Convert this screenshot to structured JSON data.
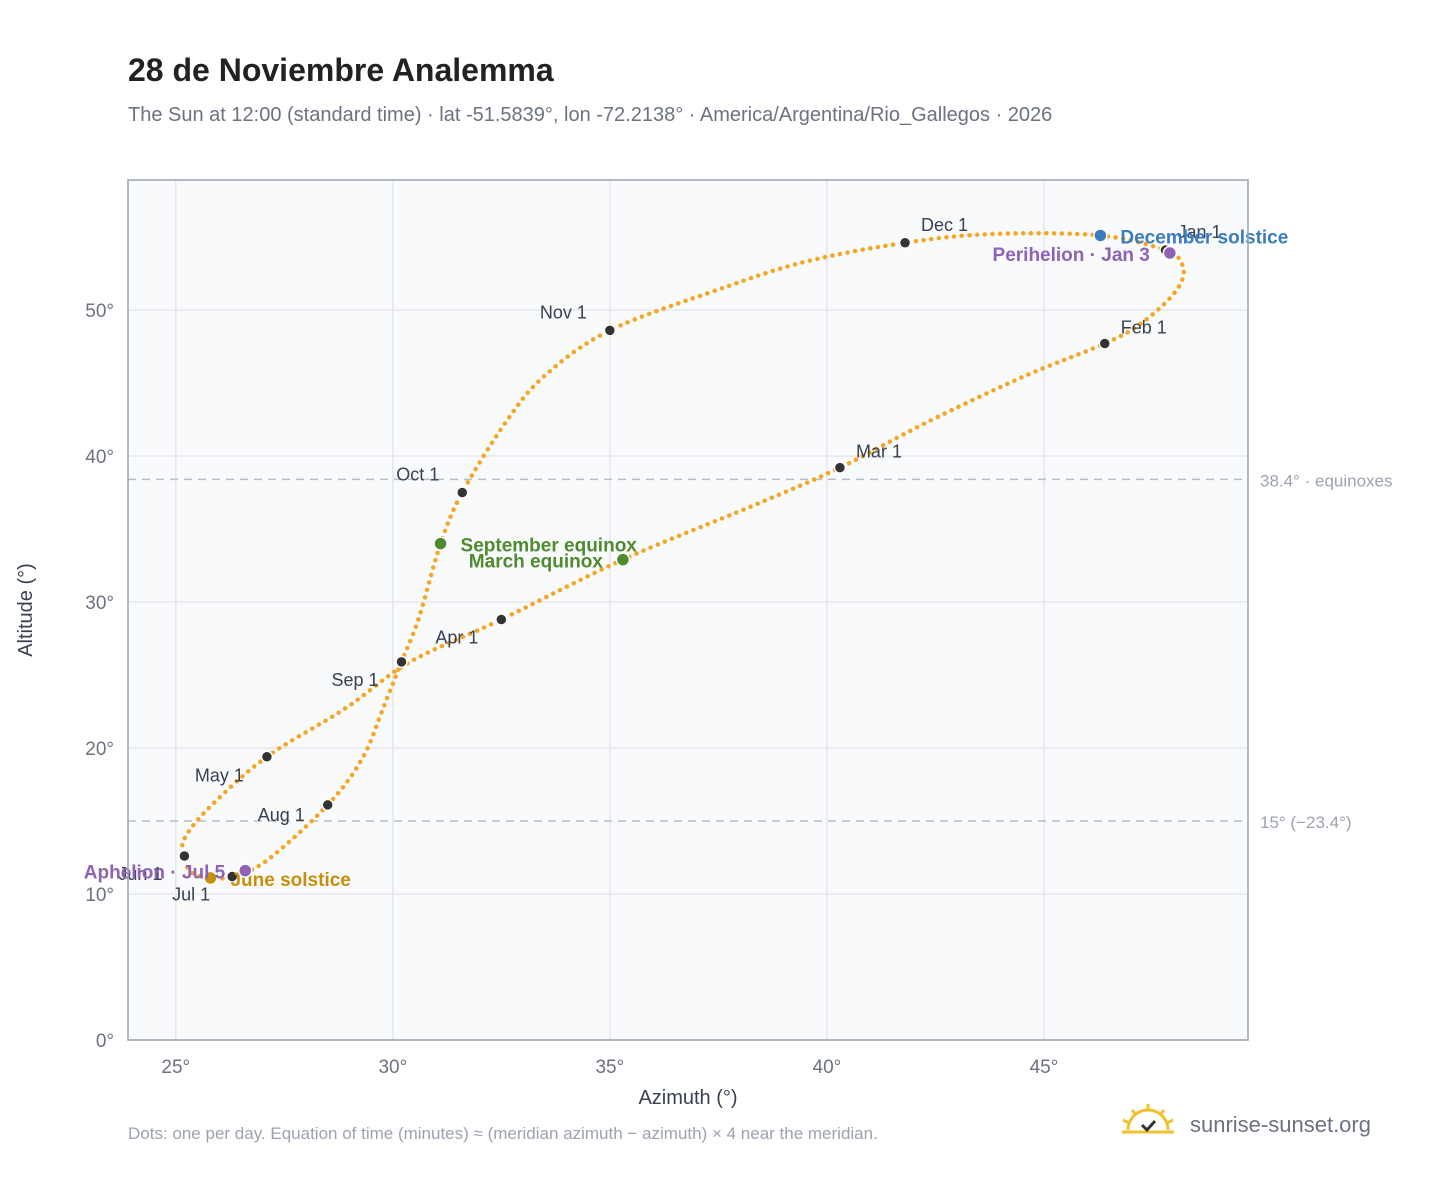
{
  "title": "28 de Noviembre Analemma",
  "subtitle": "The Sun at 12:00 (standard time) · lat -51.5839°, lon -72.2138° · America/Argentina/Rio_Gallegos · 2026",
  "footer": "Dots: one per day. Equation of time (minutes) ≈ (meridian azimuth − azimuth) × 4 near the meridian.",
  "brand": "sunrise-sunset.org",
  "colors": {
    "curve": "#f5a623",
    "month_marker": "#333333",
    "december_solstice": "#3b7bbf",
    "june_solstice": "#c8900a",
    "equinox": "#4f8a2f",
    "perihelion_aphelion": "#8e63b5",
    "plot_bg": "#f8fafc",
    "grid": "#e5e7eb",
    "reference_line": "#b8bec8"
  },
  "chart_data": {
    "type": "scatter",
    "xlabel": "Azimuth (°)",
    "ylabel": "Altitude (°)",
    "xlim": [
      23.9,
      49.7
    ],
    "ylim": [
      0,
      58.9
    ],
    "xticks": [
      25,
      30,
      35,
      40,
      45
    ],
    "xtick_labels": [
      "25°",
      "30°",
      "35°",
      "40°",
      "45°"
    ],
    "yticks": [
      0,
      10,
      20,
      30,
      40,
      50
    ],
    "ytick_labels": [
      "0°",
      "10°",
      "20°",
      "30°",
      "40°",
      "50°"
    ],
    "grid": true,
    "reference_lines": [
      {
        "y": 38.4,
        "label": "38.4° · equinoxes"
      },
      {
        "y": 15,
        "label": "15° (−23.4°)"
      }
    ],
    "month_markers": [
      {
        "label": "Jan 1",
        "azimuth": 47.8,
        "altitude": 54.1
      },
      {
        "label": "Feb 1",
        "azimuth": 46.4,
        "altitude": 47.7
      },
      {
        "label": "Mar 1",
        "azimuth": 40.3,
        "altitude": 39.2
      },
      {
        "label": "Apr 1",
        "azimuth": 32.5,
        "altitude": 28.8
      },
      {
        "label": "May 1",
        "azimuth": 27.1,
        "altitude": 19.4
      },
      {
        "label": "Jun 1",
        "azimuth": 25.2,
        "altitude": 12.6
      },
      {
        "label": "Jul 1",
        "azimuth": 26.3,
        "altitude": 11.2
      },
      {
        "label": "Aug 1",
        "azimuth": 28.5,
        "altitude": 16.1
      },
      {
        "label": "Sep 1",
        "azimuth": 30.2,
        "altitude": 25.9
      },
      {
        "label": "Oct 1",
        "azimuth": 31.6,
        "altitude": 37.5
      },
      {
        "label": "Nov 1",
        "azimuth": 35.0,
        "altitude": 48.6
      },
      {
        "label": "Dec 1",
        "azimuth": 41.8,
        "altitude": 54.6
      }
    ],
    "events": [
      {
        "label": "December solstice",
        "azimuth": 46.3,
        "altitude": 55.1,
        "kind": "december_solstice"
      },
      {
        "label": "Perihelion · Jan 3",
        "azimuth": 47.9,
        "altitude": 53.9,
        "kind": "perihelion_aphelion"
      },
      {
        "label": "September equinox",
        "azimuth": 31.1,
        "altitude": 34.0,
        "kind": "equinox"
      },
      {
        "label": "March equinox",
        "azimuth": 35.3,
        "altitude": 32.9,
        "kind": "equinox"
      },
      {
        "label": "June solstice",
        "azimuth": 25.8,
        "altitude": 11.1,
        "kind": "june_solstice"
      },
      {
        "label": "Aphelion · Jul 5",
        "azimuth": 26.6,
        "altitude": 11.6,
        "kind": "perihelion_aphelion"
      }
    ],
    "analemma_path": [
      [
        47.8,
        54.1
      ],
      [
        48.15,
        53.3
      ],
      [
        48.2,
        52.2
      ],
      [
        47.9,
        50.8
      ],
      [
        47.2,
        49.0
      ],
      [
        46.4,
        47.7
      ],
      [
        44.5,
        45.4
      ],
      [
        42.3,
        42.3
      ],
      [
        40.3,
        39.2
      ],
      [
        38.3,
        36.6
      ],
      [
        35.3,
        32.9
      ],
      [
        32.5,
        28.8
      ],
      [
        30.4,
        25.9
      ],
      [
        28.9,
        22.7
      ],
      [
        27.1,
        19.4
      ],
      [
        25.8,
        16.0
      ],
      [
        25.2,
        13.8
      ],
      [
        25.2,
        12.6
      ],
      [
        25.35,
        11.5
      ],
      [
        25.8,
        11.1
      ],
      [
        26.3,
        11.2
      ],
      [
        27.1,
        12.3
      ],
      [
        28.5,
        16.1
      ],
      [
        29.3,
        19.3
      ],
      [
        29.8,
        22.9
      ],
      [
        30.2,
        25.9
      ],
      [
        30.6,
        28.9
      ],
      [
        31.1,
        34.0
      ],
      [
        31.6,
        37.5
      ],
      [
        32.6,
        42.3
      ],
      [
        33.5,
        45.5
      ],
      [
        35.0,
        48.6
      ],
      [
        37.5,
        51.4
      ],
      [
        39.5,
        53.3
      ],
      [
        41.8,
        54.6
      ],
      [
        43.8,
        55.2
      ],
      [
        46.3,
        55.1
      ],
      [
        47.8,
        54.1
      ]
    ]
  }
}
